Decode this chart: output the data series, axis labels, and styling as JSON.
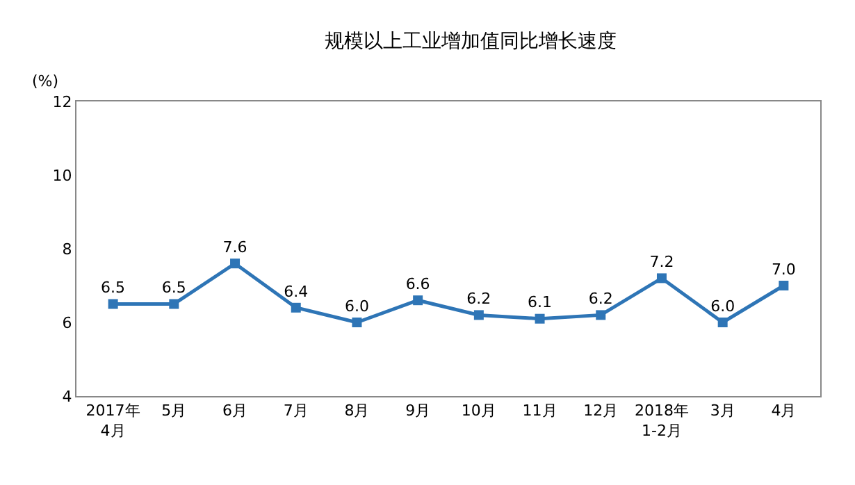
{
  "chart_data": {
    "type": "line",
    "title": "规模以上工业增加值同比增长速度",
    "ylabel": "(%)",
    "categories": [
      "2017年\n4月",
      "5月",
      "6月",
      "7月",
      "8月",
      "9月",
      "10月",
      "11月",
      "12月",
      "2018年\n1-2月",
      "3月",
      "4月"
    ],
    "series": [
      {
        "color": "#2e75b6",
        "values": [
          6.5,
          6.5,
          7.6,
          6.4,
          6.0,
          6.6,
          6.2,
          6.1,
          6.2,
          7.2,
          6.0,
          7.0
        ],
        "value_labels": [
          "6.5",
          "6.5",
          "7.6",
          "6.4",
          "6.0",
          "6.6",
          "6.2",
          "6.1",
          "6.2",
          "7.2",
          "6.0",
          "7.0"
        ]
      }
    ],
    "ylim": [
      4,
      12
    ],
    "yticks": [
      4,
      6,
      8,
      10,
      12
    ],
    "grid": false,
    "marker": "square",
    "line_style": "solid"
  }
}
